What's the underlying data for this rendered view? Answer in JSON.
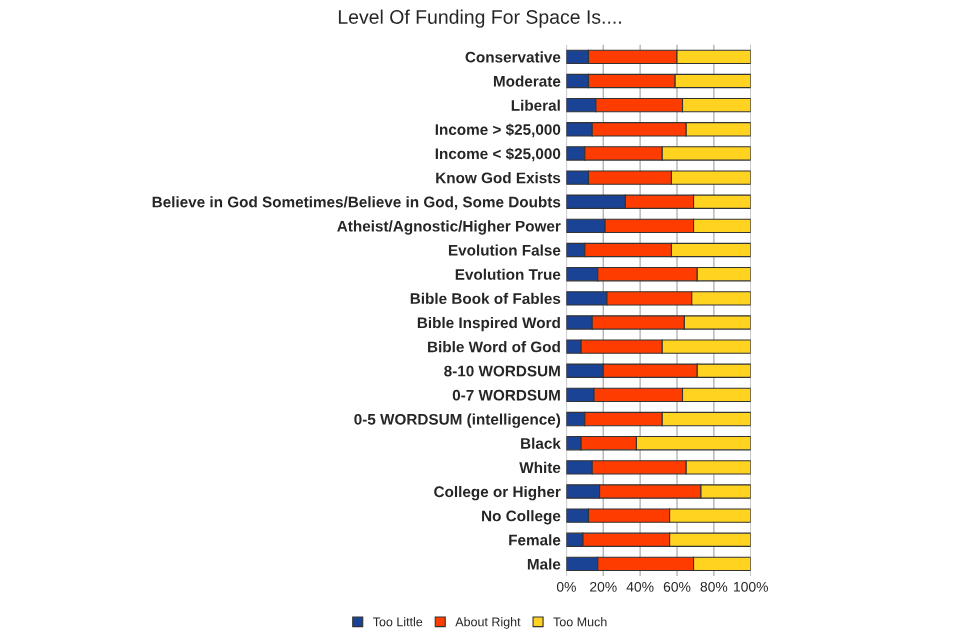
{
  "chart_data": {
    "type": "bar",
    "orientation": "horizontal",
    "stacked": true,
    "title": "Level Of Funding For Space Is....",
    "categories": [
      "Conservative",
      "Moderate",
      "Liberal",
      "Income > $25,000",
      "Income < $25,000",
      "Know God Exists",
      "Believe in God Sometimes/Believe in God, Some Doubts",
      "Atheist/Agnostic/Higher Power",
      "Evolution False",
      "Evolution True",
      "Bible Book of Fables",
      "Bible Inspired Word",
      "Bible Word of God",
      "8-10 WORDSUM",
      "0-7 WORDSUM",
      "0-5 WORDSUM (intelligence)",
      "Black",
      "White",
      "College or Higher",
      "No College",
      "Female",
      "Male"
    ],
    "series": [
      {
        "name": "Too Little",
        "color": "#1a4396",
        "values": [
          12,
          12,
          16,
          14,
          10,
          12,
          32,
          21,
          10,
          17,
          22,
          14,
          8,
          20,
          15,
          10,
          8,
          14,
          18,
          12,
          9,
          17
        ]
      },
      {
        "name": "About Right",
        "color": "#ff3c00",
        "values": [
          48,
          47,
          47,
          51,
          42,
          45,
          37,
          48,
          47,
          54,
          46,
          50,
          44,
          51,
          48,
          42,
          30,
          51,
          55,
          44,
          47,
          52
        ]
      },
      {
        "name": "Too Much",
        "color": "#ffd320",
        "values": [
          40,
          41,
          37,
          35,
          48,
          43,
          31,
          31,
          43,
          29,
          32,
          36,
          48,
          29,
          37,
          48,
          62,
          35,
          27,
          44,
          44,
          31
        ]
      }
    ],
    "xlim": [
      0,
      100
    ],
    "xticks": [
      {
        "value": 0,
        "label": "0%"
      },
      {
        "value": 20,
        "label": "20%"
      },
      {
        "value": 40,
        "label": "40%"
      },
      {
        "value": 60,
        "label": "60%"
      },
      {
        "value": 80,
        "label": "80%"
      },
      {
        "value": 100,
        "label": "100%"
      }
    ],
    "grid": "x",
    "legend": "bottom"
  }
}
